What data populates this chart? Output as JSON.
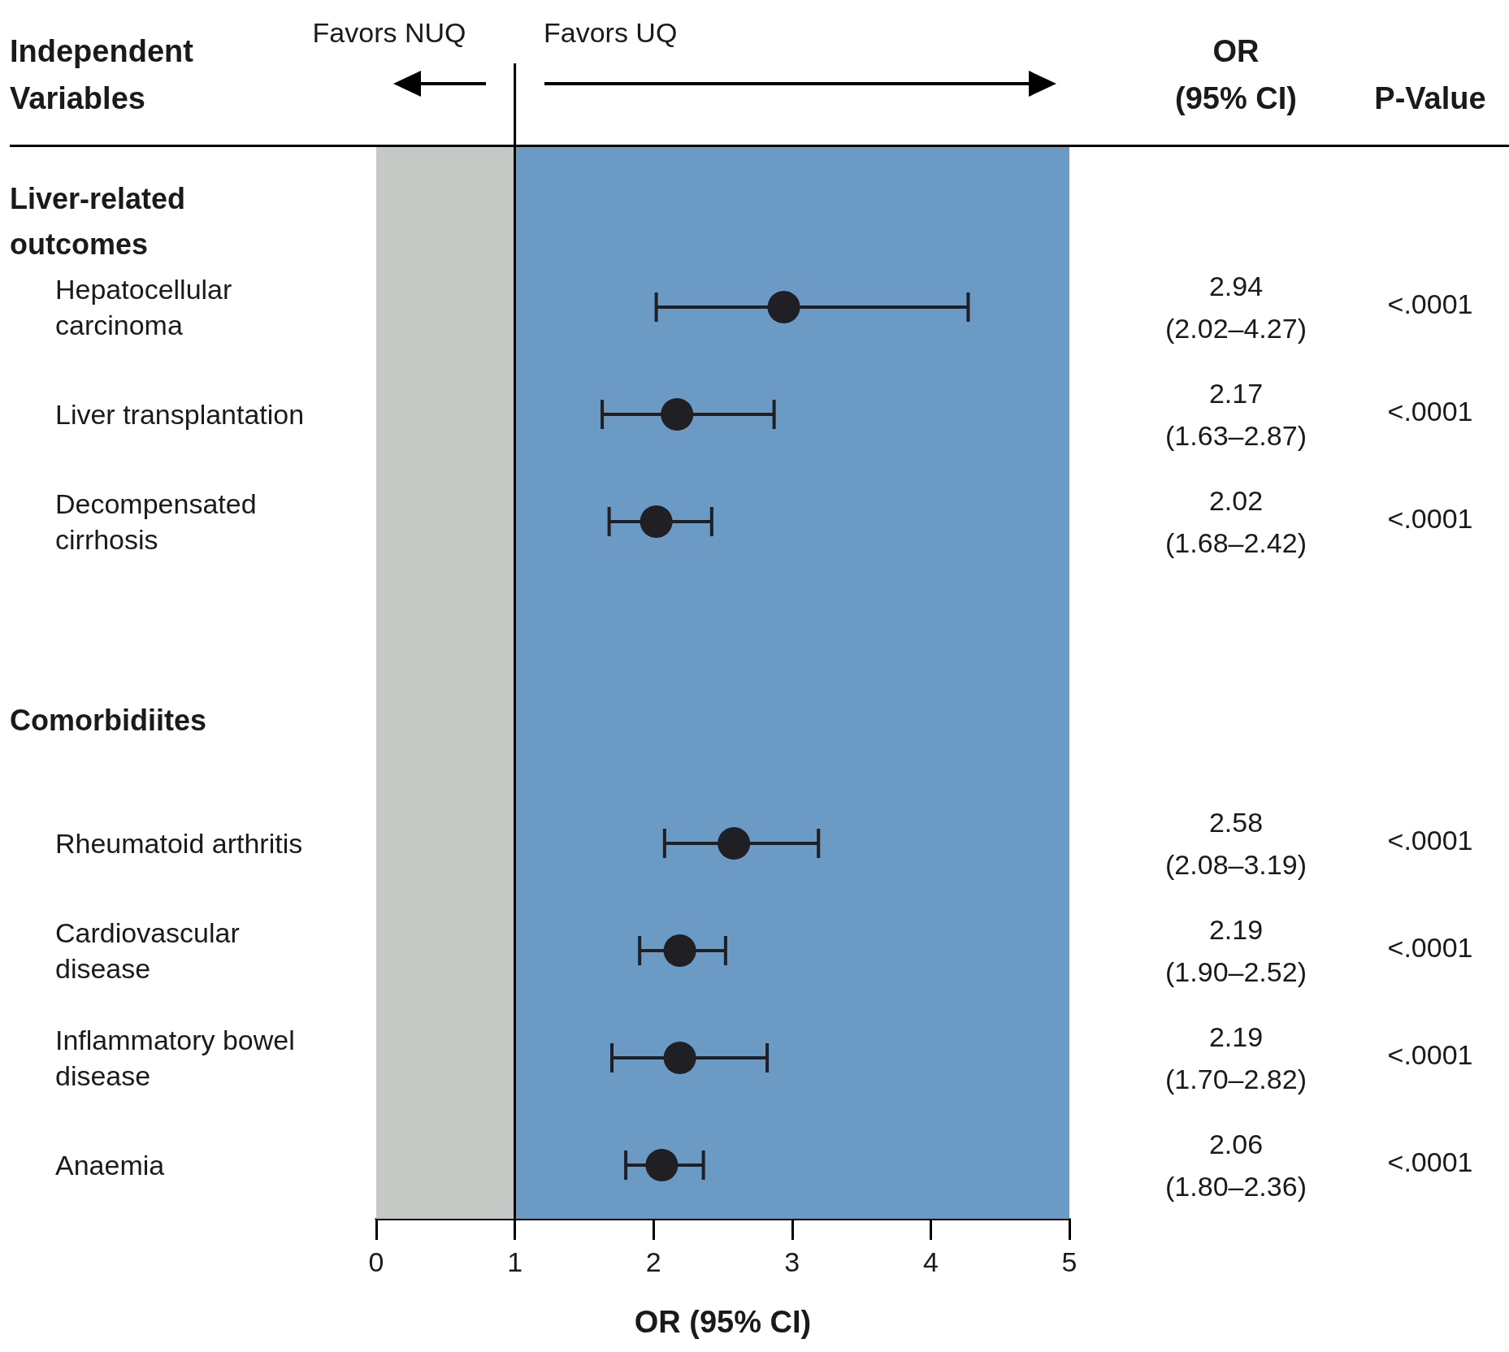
{
  "chart_data": {
    "type": "scatter",
    "orientation": "horizontal",
    "ylabel": "Independent Variables",
    "xlabel": "OR (95% CI)",
    "categories": [
      null,
      "Hepatocellular carcinoma",
      "Liver transplantation",
      "Decompensated cirrhosis",
      null,
      null,
      "Rheumatoid arthritis",
      "Cardiovascular disease",
      "Inflammatory bowel disease",
      "Anaemia"
    ],
    "values": [
      null,
      2.94,
      2.17,
      2.02,
      null,
      null,
      2.58,
      2.19,
      2.19,
      2.06
    ],
    "errors": [
      null,
      [
        2.02,
        4.27
      ],
      [
        1.63,
        2.87
      ],
      [
        1.68,
        2.42
      ],
      null,
      null,
      [
        2.08,
        3.19
      ],
      [
        1.9,
        2.52
      ],
      [
        1.7,
        2.82
      ],
      [
        1.8,
        2.36
      ]
    ],
    "value_labels": [
      null,
      "2.94 (2.02–4.27)",
      "2.17 (1.63–2.87)",
      "2.02 (1.68–2.42)",
      null,
      null,
      "2.58 (2.08–3.19)",
      "2.19 (1.90–2.52)",
      "2.19 (1.70–2.82)",
      "2.06 (1.80–2.36)"
    ],
    "color": "#1f1f24",
    "marker": "circle",
    "xlim": [
      0,
      5
    ],
    "xticks": [
      0,
      1,
      2,
      3,
      4,
      5
    ],
    "bands": [
      {
        "axis": "x",
        "from": 0,
        "to": 1,
        "color": "#c5c9c6"
      },
      {
        "axis": "x",
        "from": 1,
        "to": 5,
        "color": "#6b9ac4"
      }
    ],
    "ref_lines": [
      {
        "axis": "x",
        "value": 1,
        "color": "#000000",
        "line_style": "solid"
      }
    ],
    "annotations": [
      "Favors NUQ",
      "Favors UQ",
      "OR (95% CI)",
      "P-Value",
      "Liver-related outcomes",
      "Comorbidiites",
      "<.0001",
      "<.0001",
      "<.0001",
      "<.0001",
      "<.0001",
      "<.0001",
      "<.0001"
    ]
  }
}
